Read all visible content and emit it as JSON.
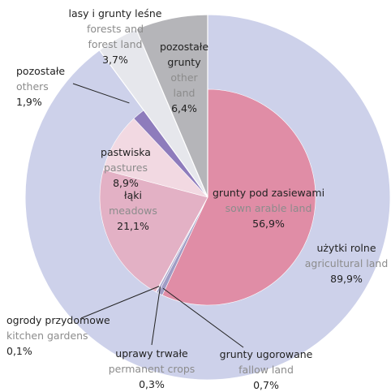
{
  "chart_data": {
    "type": "pie",
    "categories": [
      "grunty pod zasiewami",
      "grunty ugorowane",
      "uprawy trwałe",
      "ogrody przydomowe",
      "łąki",
      "pastwiska",
      "pozostałe",
      "lasy i grunty leśne",
      "pozostałe grunty"
    ],
    "categories_en": [
      "sown arable land",
      "fallow land",
      "permanent crops",
      "kitchen gardens",
      "meadows",
      "pastures",
      "others",
      "forests and forest land",
      "other land"
    ],
    "values": [
      56.9,
      0.7,
      0.3,
      0.1,
      21.1,
      8.9,
      1.9,
      3.7,
      6.4
    ],
    "value_labels": [
      "56,9%",
      "0,7%",
      "0,3%",
      "0,1%",
      "21,1%",
      "8,9%",
      "1,9%",
      "3,7%",
      "6,4%"
    ],
    "colors": [
      "#e08da6",
      "#9f9cc4",
      "#a9a6cc",
      "#b3b0d2",
      "#e3b1c5",
      "#f2d9e2",
      "#8e7cbc",
      "#e6e7ec",
      "#b5b5b9"
    ],
    "ring": {
      "label": "użytki rolne",
      "label_en": "agricultural land",
      "value": 89.9,
      "value_label": "89,9%",
      "color": "#cdd1ea"
    }
  }
}
